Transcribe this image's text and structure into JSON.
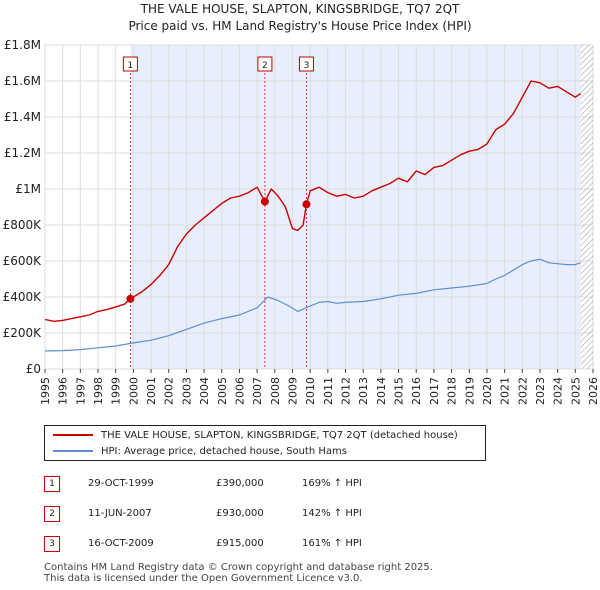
{
  "title_line1": "THE VALE HOUSE, SLAPTON, KINGSBRIDGE, TQ7 2QT",
  "title_line2": "Price paid vs. HM Land Registry's House Price Index (HPI)",
  "colors": {
    "property": "#cc0000",
    "hpi": "#5b8fd4",
    "shade": "#e8eefb",
    "grid": "#dddddd"
  },
  "legend": {
    "property_label": "THE VALE HOUSE, SLAPTON, KINGSBRIDGE, TQ7 2QT (detached house)",
    "hpi_label": "HPI: Average price, detached house, South Hams"
  },
  "sales": [
    {
      "num": "1",
      "date": "29-OCT-1999",
      "price": "£390,000",
      "hpi_change": "169% ↑ HPI"
    },
    {
      "num": "2",
      "date": "11-JUN-2007",
      "price": "£930,000",
      "hpi_change": "142% ↑ HPI"
    },
    {
      "num": "3",
      "date": "16-OCT-2009",
      "price": "£915,000",
      "hpi_change": "161% ↑ HPI"
    }
  ],
  "footer_line1": "Contains HM Land Registry data © Crown copyright and database right 2025.",
  "footer_line2": "This data is licensed under the Open Government Licence v3.0.",
  "chart_data": {
    "type": "line",
    "title": "THE VALE HOUSE, SLAPTON, KINGSBRIDGE, TQ7 2QT",
    "xlabel": "",
    "ylabel": "",
    "xlim": [
      1995,
      2026
    ],
    "ylim": [
      0,
      1800000
    ],
    "y_ticks": [
      0,
      200000,
      400000,
      600000,
      800000,
      1000000,
      1200000,
      1400000,
      1600000,
      1800000
    ],
    "y_tick_labels": [
      "£0",
      "£200K",
      "£400K",
      "£600K",
      "£800K",
      "£1M",
      "£1.2M",
      "£1.4M",
      "£1.6M",
      "£1.8M"
    ],
    "x_ticks": [
      "1995",
      "1996",
      "1997",
      "1998",
      "1999",
      "2000",
      "2001",
      "2002",
      "2003",
      "2004",
      "2005",
      "2006",
      "2007",
      "2008",
      "2009",
      "2010",
      "2011",
      "2012",
      "2013",
      "2014",
      "2015",
      "2016",
      "2017",
      "2018",
      "2019",
      "2020",
      "2021",
      "2022",
      "2023",
      "2024",
      "2025",
      "2026"
    ],
    "shaded_span": [
      1999.83,
      2025.3
    ],
    "sale_markers": [
      {
        "label": "1",
        "x": 1999.83,
        "y": 390000
      },
      {
        "label": "2",
        "x": 2007.44,
        "y": 930000
      },
      {
        "label": "3",
        "x": 2009.79,
        "y": 915000
      }
    ],
    "series": [
      {
        "name": "THE VALE HOUSE, SLAPTON, KINGSBRIDGE, TQ7 2QT (detached house)",
        "x": [
          1995.0,
          1995.5,
          1996.0,
          1996.5,
          1997.0,
          1997.5,
          1998.0,
          1998.5,
          1999.0,
          1999.5,
          1999.83,
          2000.5,
          2001.0,
          2001.5,
          2002.0,
          2002.5,
          2003.0,
          2003.5,
          2004.0,
          2004.5,
          2005.0,
          2005.5,
          2006.0,
          2006.5,
          2007.0,
          2007.44,
          2007.8,
          2008.2,
          2008.6,
          2009.0,
          2009.3,
          2009.6,
          2009.79,
          2010.0,
          2010.5,
          2011.0,
          2011.5,
          2012.0,
          2012.5,
          2013.0,
          2013.5,
          2014.0,
          2014.5,
          2015.0,
          2015.5,
          2016.0,
          2016.5,
          2017.0,
          2017.5,
          2018.0,
          2018.5,
          2019.0,
          2019.5,
          2020.0,
          2020.5,
          2021.0,
          2021.5,
          2022.0,
          2022.5,
          2023.0,
          2023.5,
          2024.0,
          2024.5,
          2025.0,
          2025.3
        ],
        "y": [
          275000,
          265000,
          270000,
          280000,
          290000,
          300000,
          320000,
          330000,
          345000,
          360000,
          390000,
          430000,
          470000,
          520000,
          580000,
          680000,
          750000,
          800000,
          840000,
          880000,
          920000,
          950000,
          960000,
          980000,
          1010000,
          930000,
          1000000,
          960000,
          900000,
          780000,
          770000,
          800000,
          915000,
          990000,
          1010000,
          980000,
          960000,
          970000,
          950000,
          960000,
          990000,
          1010000,
          1030000,
          1060000,
          1040000,
          1100000,
          1080000,
          1120000,
          1130000,
          1160000,
          1190000,
          1210000,
          1220000,
          1250000,
          1330000,
          1360000,
          1420000,
          1510000,
          1600000,
          1590000,
          1560000,
          1570000,
          1540000,
          1510000,
          1530000
        ]
      },
      {
        "name": "HPI: Average price, detached house, South Hams",
        "x": [
          1995.0,
          1996.0,
          1997.0,
          1998.0,
          1999.0,
          2000.0,
          2001.0,
          2002.0,
          2003.0,
          2004.0,
          2005.0,
          2006.0,
          2007.0,
          2007.6,
          2008.2,
          2008.8,
          2009.3,
          2010.0,
          2010.5,
          2011.0,
          2011.5,
          2012.0,
          2013.0,
          2014.0,
          2015.0,
          2016.0,
          2017.0,
          2018.0,
          2019.0,
          2020.0,
          2020.5,
          2021.0,
          2021.5,
          2022.0,
          2022.5,
          2023.0,
          2023.5,
          2024.0,
          2024.5,
          2025.0,
          2025.3
        ],
        "y": [
          100000,
          102000,
          108000,
          118000,
          128000,
          145000,
          160000,
          185000,
          220000,
          255000,
          280000,
          300000,
          340000,
          400000,
          380000,
          350000,
          320000,
          350000,
          370000,
          375000,
          365000,
          370000,
          375000,
          390000,
          410000,
          420000,
          440000,
          450000,
          460000,
          475000,
          500000,
          520000,
          550000,
          580000,
          600000,
          610000,
          590000,
          585000,
          580000,
          580000,
          590000
        ]
      }
    ]
  }
}
